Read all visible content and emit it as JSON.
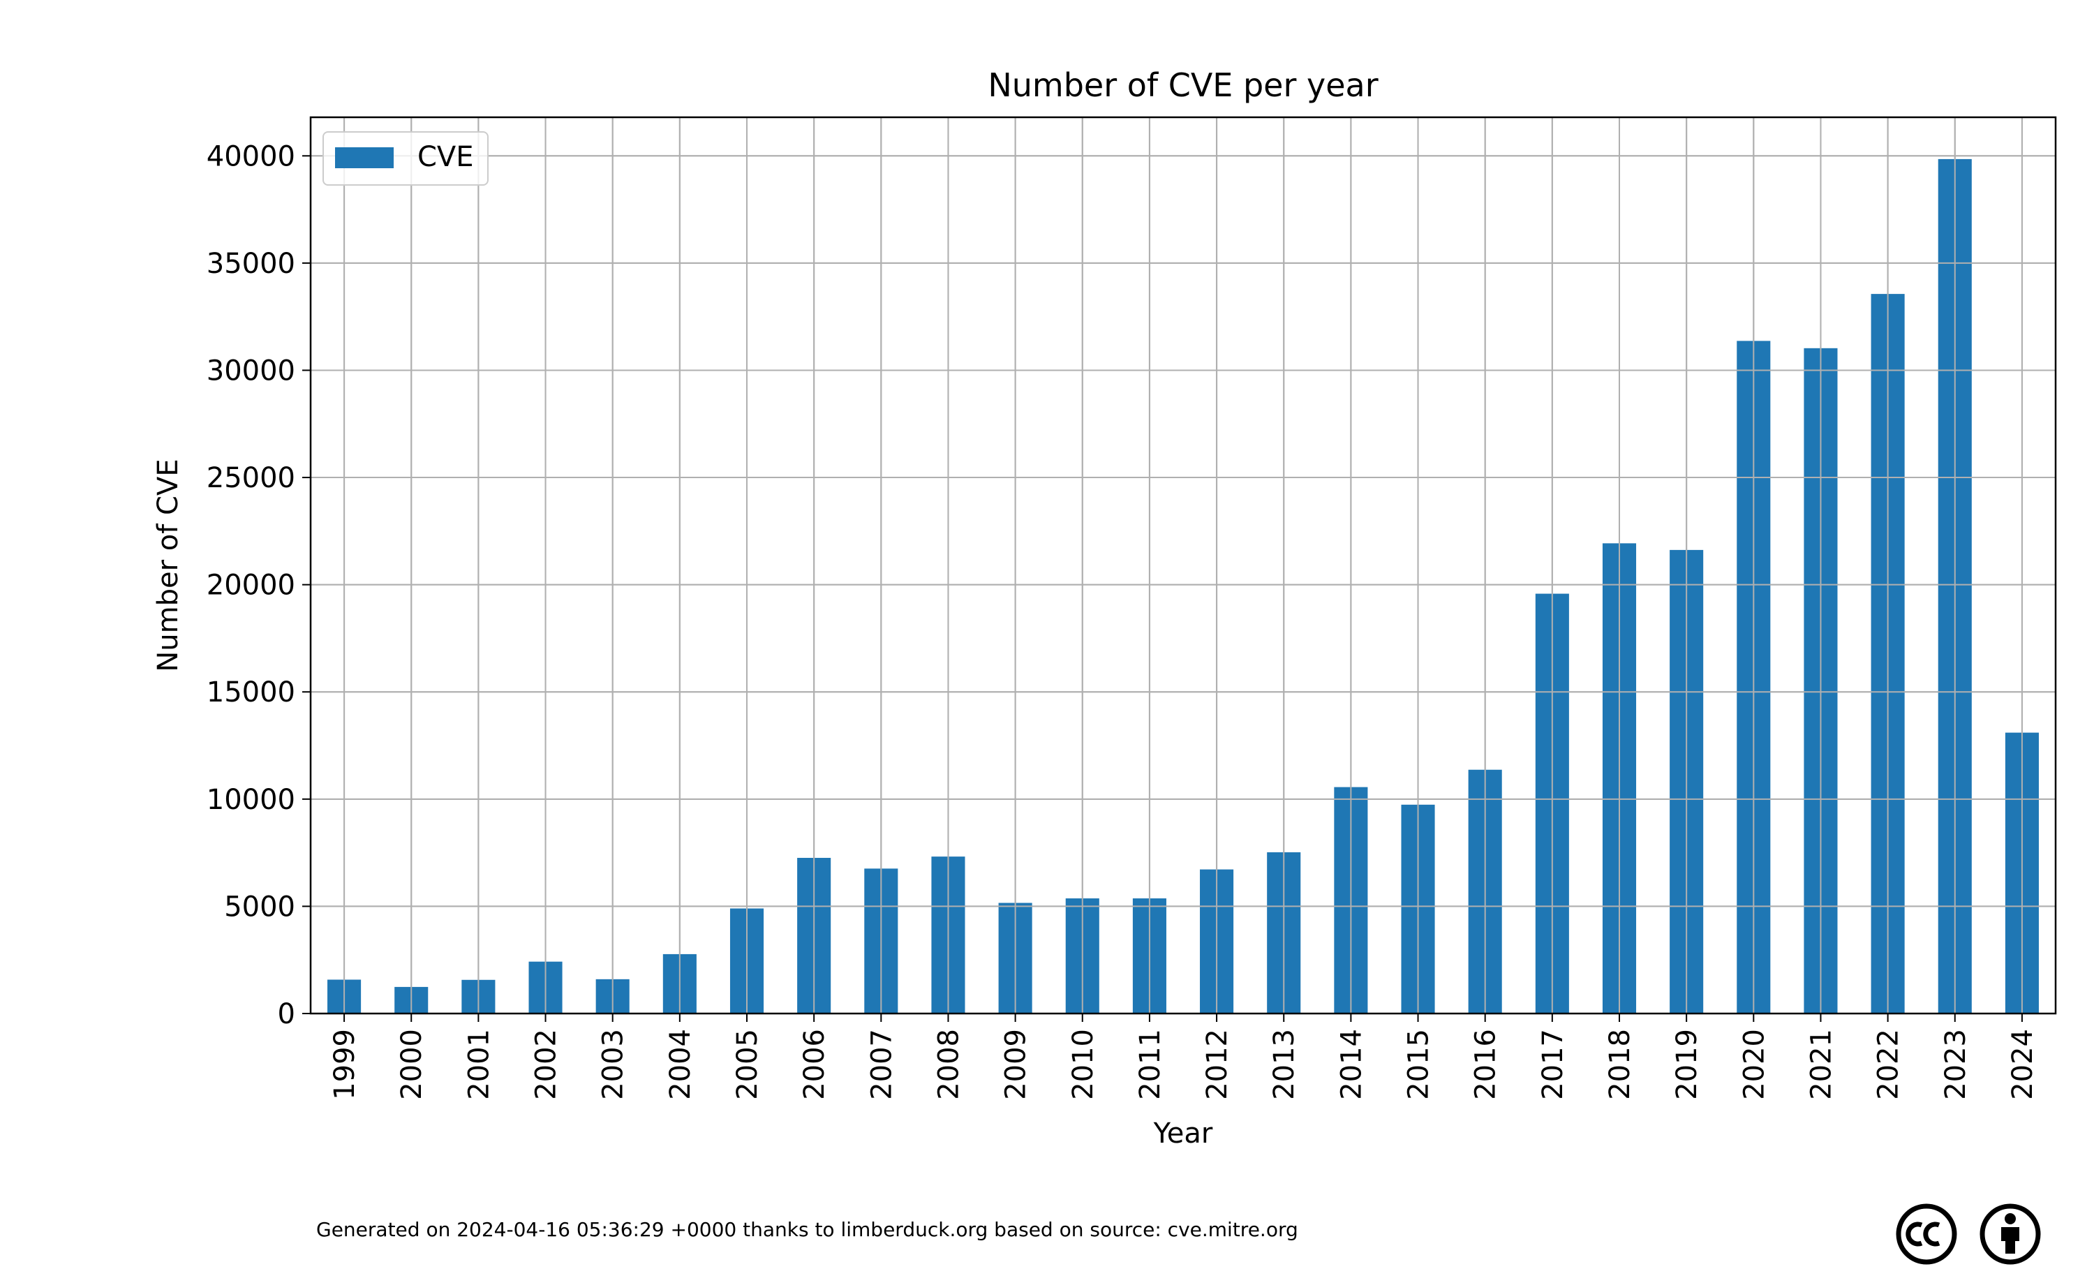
{
  "chart_data": {
    "type": "bar",
    "title": "Number of CVE per year",
    "xlabel": "Year",
    "ylabel": "Number of CVE",
    "categories": [
      "1999",
      "2000",
      "2001",
      "2002",
      "2003",
      "2004",
      "2005",
      "2006",
      "2007",
      "2008",
      "2009",
      "2010",
      "2011",
      "2012",
      "2013",
      "2014",
      "2015",
      "2016",
      "2017",
      "2018",
      "2019",
      "2020",
      "2021",
      "2022",
      "2023",
      "2024"
    ],
    "series": [
      {
        "name": "CVE",
        "color": "#1f77b4",
        "values": [
          1580,
          1240,
          1570,
          2420,
          1600,
          2770,
          4900,
          7260,
          6760,
          7320,
          5160,
          5370,
          5370,
          6720,
          7520,
          10560,
          9740,
          11370,
          19580,
          21930,
          21620,
          31370,
          31030,
          33560,
          39850,
          13100
        ]
      }
    ],
    "yticks": [
      "0",
      "5000",
      "10000",
      "15000",
      "20000",
      "25000",
      "30000",
      "35000",
      "40000"
    ],
    "ylim": [
      0,
      41800
    ],
    "grid": true,
    "legend_position": "top-left"
  },
  "footer": {
    "text": "Generated on 2024-04-16 05:36:29 +0000 thanks to limberduck.org based on source: cve.mitre.org"
  },
  "badges": {
    "cc_icon": "creative-commons-icon",
    "by_icon": "attribution-icon"
  }
}
